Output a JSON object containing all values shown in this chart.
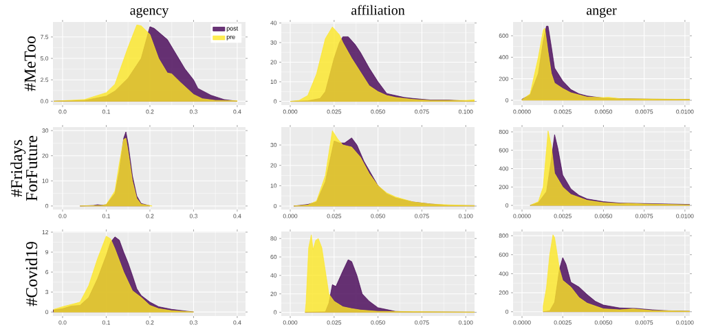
{
  "chart_data": [
    {
      "type": "area",
      "title": "agency",
      "ylabel": "#MeToo",
      "xlim": [
        -0.022,
        0.419
      ],
      "ylim": [
        -0.45,
        9.25
      ],
      "grid": true,
      "legend": "top right",
      "xticks": [
        {
          "value": 0,
          "label": "0.0"
        },
        0.1,
        0.2,
        0.3,
        0.4
      ],
      "yticks": [
        {
          "value": 0,
          "label": "0.0"
        },
        2.5,
        {
          "value": 5,
          "label": "5.0"
        },
        7.5
      ],
      "series": [
        {
          "name": "post",
          "color": "#440154",
          "x": [
            -0.02,
            0.05,
            0.1,
            0.12,
            0.15,
            0.18,
            0.2,
            0.21,
            0.24,
            0.26,
            0.28,
            0.3,
            0.31,
            0.34,
            0.37,
            0.4
          ],
          "values": [
            0,
            0.1,
            0.6,
            1.2,
            2.7,
            5.0,
            8.7,
            8.5,
            7.2,
            5.5,
            3.8,
            2.5,
            1.5,
            0.7,
            0.2,
            0
          ]
        },
        {
          "name": "pre",
          "color": "#fde725",
          "x": [
            -0.02,
            0.05,
            0.1,
            0.12,
            0.15,
            0.17,
            0.18,
            0.2,
            0.22,
            0.24,
            0.25,
            0.27,
            0.3,
            0.32,
            0.35,
            0.4
          ],
          "values": [
            0,
            0.2,
            1.0,
            2.0,
            6.3,
            8.9,
            8.8,
            7.8,
            5.0,
            3.3,
            3.2,
            2.2,
            0.8,
            0.3,
            0.1,
            0.05
          ]
        }
      ]
    },
    {
      "type": "area",
      "title": "affiliation",
      "xlim": [
        -0.0051,
        0.105
      ],
      "ylim": [
        -1.9,
        40.5
      ],
      "grid": true,
      "xticks": [
        {
          "value": 0,
          "label": "0.000"
        },
        0.025,
        {
          "value": 0.05,
          "label": "0.050"
        },
        0.075,
        {
          "value": 0.1,
          "label": "0.100"
        }
      ],
      "yticks": [
        0,
        10,
        20,
        30,
        40
      ],
      "series": [
        {
          "color": "#440154",
          "x": [
            0,
            0.01,
            0.017,
            0.02,
            0.025,
            0.028,
            0.03,
            0.033,
            0.037,
            0.04,
            0.045,
            0.05,
            0.055,
            0.06,
            0.065,
            0.07,
            0.08,
            0.09,
            0.1,
            0.105
          ],
          "values": [
            0,
            0.3,
            1.5,
            5,
            22,
            30,
            33,
            33,
            29,
            25,
            17,
            10,
            4,
            3,
            2,
            1.5,
            0.7,
            0.7,
            0.2,
            0.2
          ]
        },
        {
          "color": "#fde725",
          "x": [
            0,
            0.005,
            0.01,
            0.015,
            0.02,
            0.024,
            0.028,
            0.03,
            0.035,
            0.04,
            0.045,
            0.05,
            0.055,
            0.06,
            0.07,
            0.08,
            0.1,
            0.105
          ],
          "values": [
            0,
            0.5,
            3,
            14,
            32,
            38,
            34,
            30,
            22,
            15,
            8,
            5,
            3,
            2,
            1,
            0.5,
            0.5,
            0.8
          ]
        }
      ]
    },
    {
      "type": "area",
      "title": "anger",
      "xlim": [
        -0.00055,
        0.0103
      ],
      "ylim": [
        -45,
        728
      ],
      "grid": true,
      "xticks": [
        {
          "value": 0,
          "label": "0.0000"
        },
        0.0025,
        {
          "value": 0.005,
          "label": "0.0050"
        },
        0.0075,
        {
          "value": 0.01,
          "label": "0.0100"
        }
      ],
      "yticks": [
        0,
        200,
        400,
        600
      ],
      "series": [
        {
          "color": "#440154",
          "x": [
            0,
            0.0005,
            0.001,
            0.0013,
            0.0015,
            0.0016,
            0.0018,
            0.002,
            0.0025,
            0.003,
            0.0035,
            0.004,
            0.005,
            0.006,
            0.008,
            0.0103
          ],
          "values": [
            10,
            50,
            250,
            550,
            690,
            690,
            500,
            300,
            180,
            100,
            60,
            40,
            20,
            15,
            10,
            8
          ]
        },
        {
          "color": "#fde725",
          "x": [
            0,
            0.0005,
            0.001,
            0.0013,
            0.0014,
            0.0016,
            0.0018,
            0.002,
            0.0025,
            0.003,
            0.004,
            0.005,
            0.0053,
            0.006,
            0.0075,
            0.0103
          ],
          "values": [
            5,
            60,
            400,
            650,
            670,
            450,
            250,
            160,
            110,
            70,
            30,
            25,
            28,
            15,
            12,
            8
          ]
        }
      ]
    },
    {
      "type": "area",
      "ylabel": "#Fridays ForFuture",
      "xlim": [
        -0.022,
        0.419
      ],
      "ylim": [
        -1.4,
        31.4
      ],
      "grid": true,
      "xticks": [
        {
          "value": 0,
          "label": "0.0"
        },
        0.1,
        0.2,
        0.3,
        0.4
      ],
      "yticks": [
        0,
        10,
        20,
        30
      ],
      "series": [
        {
          "color": "#440154",
          "x": [
            0.04,
            0.07,
            0.08,
            0.09,
            0.1,
            0.12,
            0.13,
            0.14,
            0.145,
            0.15,
            0.16,
            0.17,
            0.18,
            0.2
          ],
          "values": [
            0,
            0.2,
            0.5,
            0.3,
            0.5,
            5,
            14,
            27,
            29.5,
            25,
            12,
            4,
            1,
            0.1
          ]
        },
        {
          "color": "#fde725",
          "x": [
            0.04,
            0.09,
            0.1,
            0.12,
            0.13,
            0.14,
            0.145,
            0.15,
            0.16,
            0.17,
            0.18,
            0.2,
            0.205
          ],
          "values": [
            0,
            0.2,
            0.6,
            6,
            17,
            26.5,
            27,
            22,
            10,
            3,
            0.7,
            0.2,
            0
          ]
        }
      ]
    },
    {
      "type": "area",
      "xlim": [
        -0.0051,
        0.105
      ],
      "ylim": [
        -1.7,
        38.8
      ],
      "grid": true,
      "xticks": [
        {
          "value": 0,
          "label": "0.000"
        },
        0.025,
        {
          "value": 0.05,
          "label": "0.050"
        },
        0.075,
        {
          "value": 0.1,
          "label": "0.100"
        }
      ],
      "yticks": [
        0,
        10,
        20,
        30
      ],
      "series": [
        {
          "color": "#440154",
          "x": [
            0.002,
            0.01,
            0.015,
            0.02,
            0.025,
            0.028,
            0.031,
            0.035,
            0.038,
            0.042,
            0.046,
            0.05,
            0.055,
            0.06,
            0.07,
            0.08,
            0.09,
            0.105
          ],
          "values": [
            0,
            0.8,
            2,
            12,
            32,
            31,
            31,
            33.5,
            30,
            22,
            16,
            10,
            6,
            4,
            2,
            1,
            0.3,
            0.2
          ]
        },
        {
          "color": "#fde725",
          "x": [
            0.002,
            0.01,
            0.015,
            0.02,
            0.024,
            0.027,
            0.03,
            0.035,
            0.04,
            0.045,
            0.05,
            0.055,
            0.06,
            0.07,
            0.08,
            0.09,
            0.105
          ],
          "values": [
            0,
            0.5,
            2.5,
            15,
            37,
            33,
            30,
            29,
            24,
            16,
            10,
            6.5,
            4.5,
            2,
            1,
            0.6,
            0.2
          ]
        }
      ]
    },
    {
      "type": "area",
      "xlim": [
        -0.00055,
        0.0103
      ],
      "ylim": [
        -45,
        852
      ],
      "grid": true,
      "xticks": [
        {
          "value": 0,
          "label": "0.0000"
        },
        0.0025,
        {
          "value": 0.005,
          "label": "0.0050"
        },
        0.0075,
        {
          "value": 0.01,
          "label": "0.0100"
        }
      ],
      "yticks": [
        0,
        200,
        400,
        600,
        800
      ],
      "series": [
        {
          "color": "#440154",
          "x": [
            0.0005,
            0.001,
            0.0015,
            0.0018,
            0.002,
            0.0022,
            0.0025,
            0.003,
            0.0035,
            0.004,
            0.005,
            0.006,
            0.0075,
            0.009,
            0.0103
          ],
          "values": [
            0,
            30,
            150,
            500,
            770,
            620,
            330,
            180,
            110,
            70,
            40,
            25,
            20,
            15,
            10
          ]
        },
        {
          "color": "#fde725",
          "x": [
            0.0005,
            0.001,
            0.0013,
            0.0015,
            0.0016,
            0.0018,
            0.002,
            0.0025,
            0.003,
            0.004,
            0.005,
            0.006,
            0.0065,
            0.0075,
            0.0103
          ],
          "values": [
            0,
            40,
            200,
            600,
            810,
            650,
            350,
            200,
            120,
            55,
            30,
            20,
            22,
            15,
            5
          ]
        }
      ]
    },
    {
      "type": "area",
      "ylabel": "#Covid19",
      "xlim": [
        -0.022,
        0.419
      ],
      "ylim": [
        -0.6,
        12.1
      ],
      "grid": true,
      "xticks": [
        {
          "value": 0,
          "label": "0.0"
        },
        0.1,
        0.2,
        0.3,
        0.4
      ],
      "yticks": [
        0,
        3,
        6,
        9,
        12
      ],
      "series": [
        {
          "color": "#440154",
          "x": [
            -0.022,
            0,
            0.02,
            0.04,
            0.06,
            0.08,
            0.1,
            0.11,
            0.12,
            0.13,
            0.14,
            0.15,
            0.16,
            0.17,
            0.18,
            0.2,
            0.22,
            0.25,
            0.3
          ],
          "values": [
            0.3,
            0.5,
            0.9,
            1.0,
            2.2,
            5,
            8.5,
            10.5,
            11.3,
            10.8,
            9,
            7.4,
            5.5,
            3.5,
            2.5,
            1.5,
            0.8,
            0.4,
            0
          ]
        },
        {
          "color": "#fde725",
          "x": [
            -0.02,
            0,
            0.03,
            0.04,
            0.06,
            0.08,
            0.1,
            0.11,
            0.12,
            0.14,
            0.16,
            0.18,
            0.2,
            0.22,
            0.25,
            0.3
          ],
          "values": [
            0.4,
            0.8,
            1.3,
            1.5,
            4,
            8,
            11.4,
            11,
            9.5,
            6,
            3.2,
            2.2,
            1,
            0.5,
            0.2,
            0
          ]
        }
      ]
    },
    {
      "type": "area",
      "xlim": [
        -0.0051,
        0.105
      ],
      "ylim": [
        -4,
        87.6
      ],
      "grid": true,
      "xticks": [
        {
          "value": 0,
          "label": "0.000"
        },
        0.025,
        {
          "value": 0.05,
          "label": "0.050"
        },
        0.075,
        {
          "value": 0.1,
          "label": "0.100"
        }
      ],
      "yticks": [
        0,
        20,
        40,
        60,
        80
      ],
      "series": [
        {
          "color": "#440154",
          "x": [
            0.0085,
            0.02,
            0.022,
            0.024,
            0.026,
            0.03,
            0.033,
            0.035,
            0.038,
            0.041,
            0.045,
            0.05,
            0.055,
            0.06,
            0.07,
            0.105
          ],
          "values": [
            0,
            0.5,
            10,
            30,
            28,
            45,
            57,
            55,
            40,
            20,
            12,
            5,
            3,
            1,
            0.5,
            0.2
          ]
        },
        {
          "color": "#fde725",
          "x": [
            0.0085,
            0.009,
            0.0105,
            0.012,
            0.013,
            0.0145,
            0.016,
            0.018,
            0.02,
            0.022,
            0.025,
            0.03,
            0.035,
            0.04,
            0.05,
            0.105
          ],
          "values": [
            0,
            10,
            70,
            84,
            68,
            78,
            80,
            70,
            45,
            20,
            12,
            6,
            4,
            2.5,
            1,
            0.3
          ]
        }
      ]
    },
    {
      "type": "area",
      "xlim": [
        -0.00055,
        0.0103
      ],
      "ylim": [
        -45,
        844
      ],
      "grid": true,
      "xticks": [
        {
          "value": 0,
          "label": "0.0000"
        },
        0.0025,
        {
          "value": 0.005,
          "label": "0.0050"
        },
        0.0075,
        {
          "value": 0.01,
          "label": "0.0100"
        }
      ],
      "yticks": [
        0,
        200,
        400,
        600,
        800
      ],
      "series": [
        {
          "color": "#440154",
          "x": [
            0.0013,
            0.0017,
            0.002,
            0.0023,
            0.0025,
            0.0027,
            0.003,
            0.0035,
            0.004,
            0.0045,
            0.005,
            0.006,
            0.007,
            0.008,
            0.009,
            0.0103
          ],
          "values": [
            0,
            10,
            100,
            450,
            570,
            500,
            310,
            260,
            180,
            110,
            70,
            40,
            35,
            20,
            10,
            5
          ]
        },
        {
          "color": "#fde725",
          "x": [
            0.0013,
            0.0015,
            0.0017,
            0.0019,
            0.002,
            0.0023,
            0.0025,
            0.003,
            0.0035,
            0.004,
            0.005,
            0.006,
            0.0068,
            0.008,
            0.0103
          ],
          "values": [
            60,
            250,
            600,
            810,
            780,
            450,
            330,
            260,
            150,
            90,
            30,
            20,
            30,
            12,
            5
          ]
        }
      ]
    }
  ]
}
